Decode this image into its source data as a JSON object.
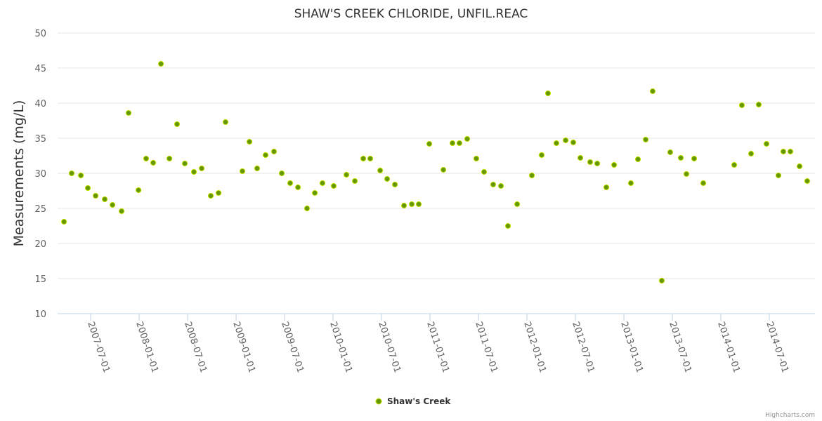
{
  "chart_data": {
    "type": "scatter",
    "title": "SHAW'S CREEK CHLORIDE, UNFIL.REAC",
    "xlabel": "",
    "ylabel": "Measurements (mg/L)",
    "ylim": [
      10,
      50
    ],
    "yticks": [
      10,
      15,
      20,
      25,
      30,
      35,
      40,
      45,
      50
    ],
    "xlim_decimal_year": [
      2007.159,
      2014.971
    ],
    "xticks": [
      {
        "label": "2007-07-01",
        "value": 2007.5
      },
      {
        "label": "2008-01-01",
        "value": 2008.0
      },
      {
        "label": "2008-07-01",
        "value": 2008.5
      },
      {
        "label": "2009-01-01",
        "value": 2009.0
      },
      {
        "label": "2009-07-01",
        "value": 2009.5
      },
      {
        "label": "2010-01-01",
        "value": 2010.0
      },
      {
        "label": "2010-07-01",
        "value": 2010.5
      },
      {
        "label": "2011-01-01",
        "value": 2011.0
      },
      {
        "label": "2011-07-01",
        "value": 2011.5
      },
      {
        "label": "2012-01-01",
        "value": 2012.0
      },
      {
        "label": "2012-07-01",
        "value": 2012.5
      },
      {
        "label": "2013-01-01",
        "value": 2013.0
      },
      {
        "label": "2013-07-01",
        "value": 2013.5
      },
      {
        "label": "2014-01-01",
        "value": 2014.0
      },
      {
        "label": "2014-07-01",
        "value": 2014.5
      }
    ],
    "grid": true,
    "legend_position": "bottom-center",
    "credit": "Highcharts.com",
    "series": [
      {
        "name": "Shaw's Creek",
        "color": "#669900",
        "marker_fill": "#669900",
        "marker_stroke": "#c8e000",
        "x": [
          2007.225,
          2007.304,
          2007.399,
          2007.471,
          2007.551,
          2007.645,
          2007.725,
          2007.819,
          2007.891,
          2007.993,
          2008.072,
          2008.145,
          2008.225,
          2008.312,
          2008.391,
          2008.471,
          2008.565,
          2008.645,
          2008.739,
          2008.819,
          2008.891,
          2009.065,
          2009.138,
          2009.217,
          2009.304,
          2009.391,
          2009.471,
          2009.558,
          2009.638,
          2009.732,
          2009.812,
          2009.891,
          2010.007,
          2010.138,
          2010.225,
          2010.312,
          2010.384,
          2010.486,
          2010.558,
          2010.638,
          2010.732,
          2010.812,
          2010.884,
          2010.993,
          2011.138,
          2011.232,
          2011.304,
          2011.384,
          2011.478,
          2011.558,
          2011.652,
          2011.732,
          2011.804,
          2011.899,
          2012.051,
          2012.152,
          2012.217,
          2012.304,
          2012.399,
          2012.478,
          2012.551,
          2012.652,
          2012.725,
          2012.819,
          2012.899,
          2013.072,
          2013.145,
          2013.225,
          2013.297,
          2013.391,
          2013.478,
          2013.587,
          2013.645,
          2013.725,
          2013.819,
          2014.138,
          2014.217,
          2014.312,
          2014.391,
          2014.471,
          2014.594,
          2014.645,
          2014.717,
          2014.812,
          2014.891
        ],
        "y": [
          23.1,
          30.0,
          29.7,
          27.9,
          26.8,
          26.3,
          25.5,
          24.6,
          38.6,
          27.6,
          32.1,
          31.5,
          45.6,
          32.1,
          37.0,
          31.4,
          30.2,
          30.7,
          26.8,
          27.2,
          37.3,
          30.3,
          34.5,
          30.7,
          32.6,
          33.1,
          30.0,
          28.6,
          28.0,
          25.0,
          27.2,
          28.6,
          28.2,
          29.8,
          28.9,
          32.1,
          32.1,
          30.4,
          29.2,
          28.4,
          25.4,
          25.6,
          25.6,
          34.2,
          30.5,
          34.3,
          34.3,
          34.9,
          32.1,
          30.2,
          28.4,
          28.2,
          22.5,
          25.6,
          29.7,
          32.6,
          41.4,
          34.3,
          34.7,
          34.4,
          32.2,
          31.6,
          31.4,
          28.0,
          31.2,
          28.6,
          32.0,
          34.8,
          41.7,
          14.7,
          33.0,
          32.2,
          29.9,
          32.1,
          28.6,
          31.2,
          39.7,
          32.8,
          39.8,
          34.2,
          29.7,
          33.1,
          33.1,
          31.0,
          28.9
        ]
      }
    ]
  }
}
